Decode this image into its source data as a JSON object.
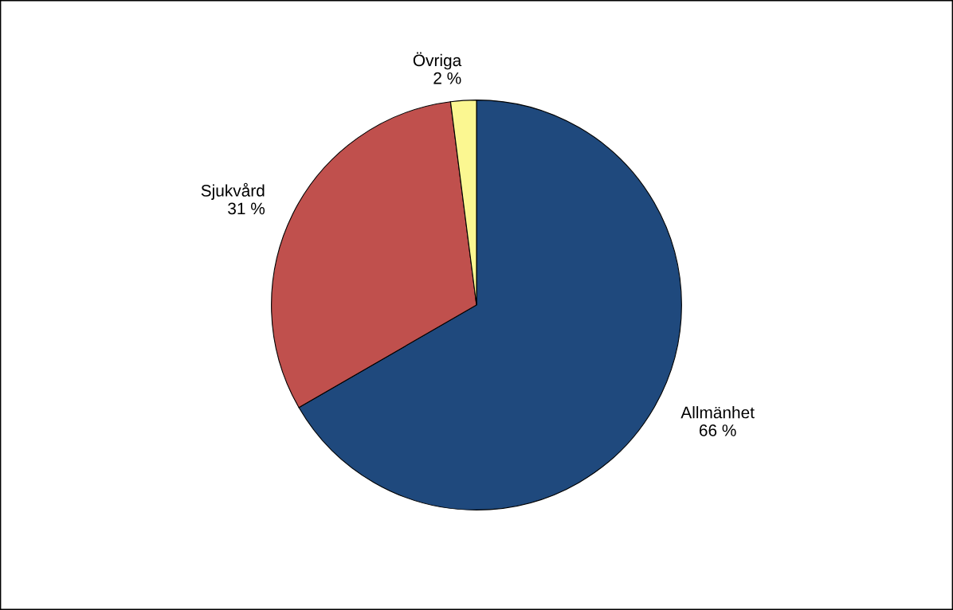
{
  "chart_data": {
    "type": "pie",
    "categories": [
      "Allmänhet",
      "Sjukvård",
      "Övriga"
    ],
    "values": [
      66,
      31,
      2
    ],
    "value_labels": [
      "66 %",
      "31 %",
      "2 %"
    ],
    "colors": [
      "#1f497d",
      "#c0504d",
      "#fbf791"
    ]
  }
}
